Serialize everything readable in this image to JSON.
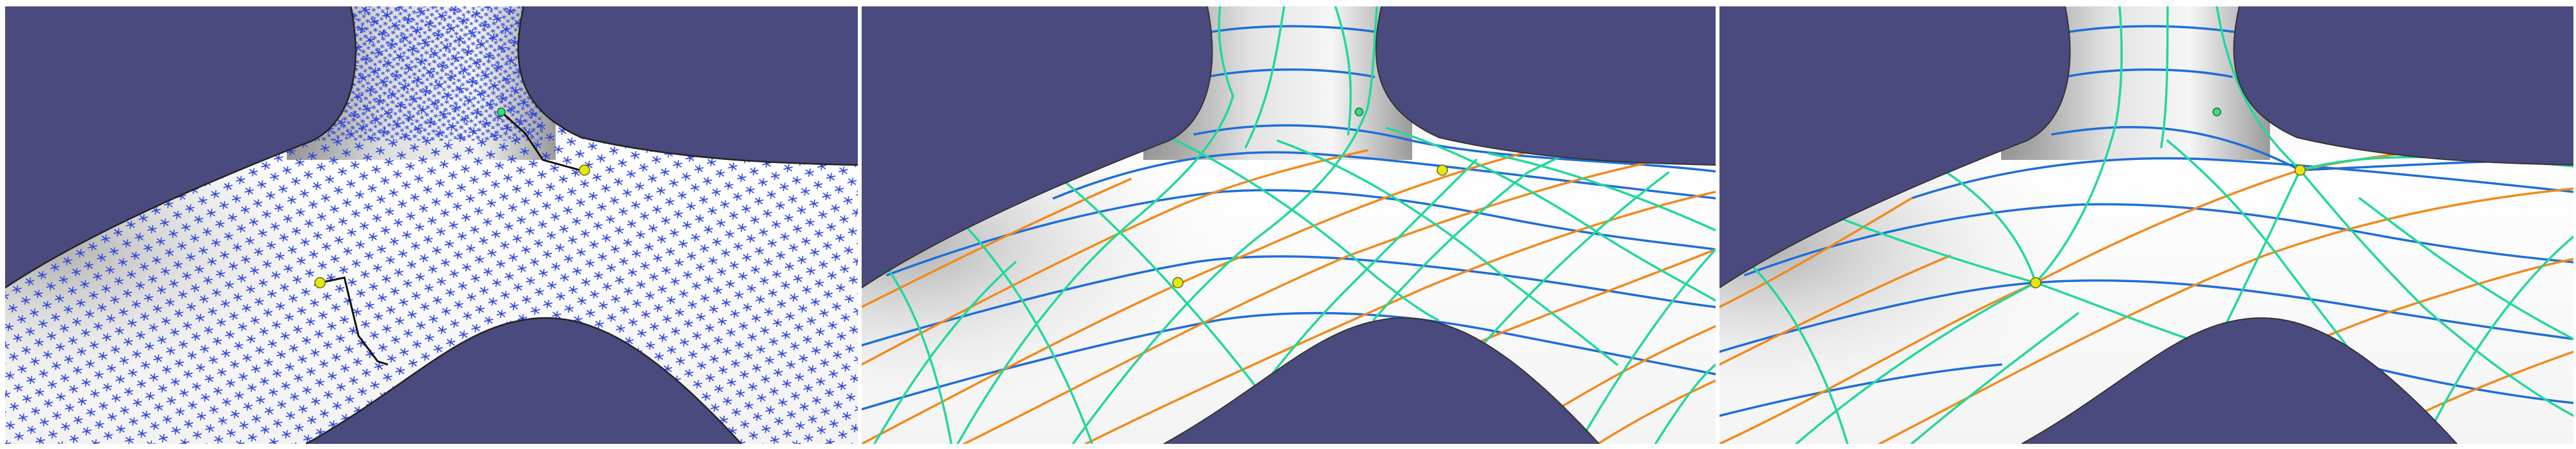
{
  "figure": {
    "panels": [
      {
        "id": "left",
        "style": "sample-points-with-geodesic-paths",
        "point_color": "#2e45d6"
      },
      {
        "id": "middle",
        "style": "quad-parameterization-grid"
      },
      {
        "id": "right",
        "style": "quad-parameterization-grid-with-singularities"
      }
    ],
    "colors": {
      "background": "#4b4a7e",
      "surface": "#ffffff",
      "surface_shadow": "#a7a7a7",
      "samples": "#2e45d6",
      "line_blue": "#1f6ed8",
      "line_orange": "#f08a1c",
      "line_green": "#22d89c",
      "marker_yellow": "#e3e614",
      "marker_green": "#39e07a",
      "path_black": "#111111"
    }
  }
}
